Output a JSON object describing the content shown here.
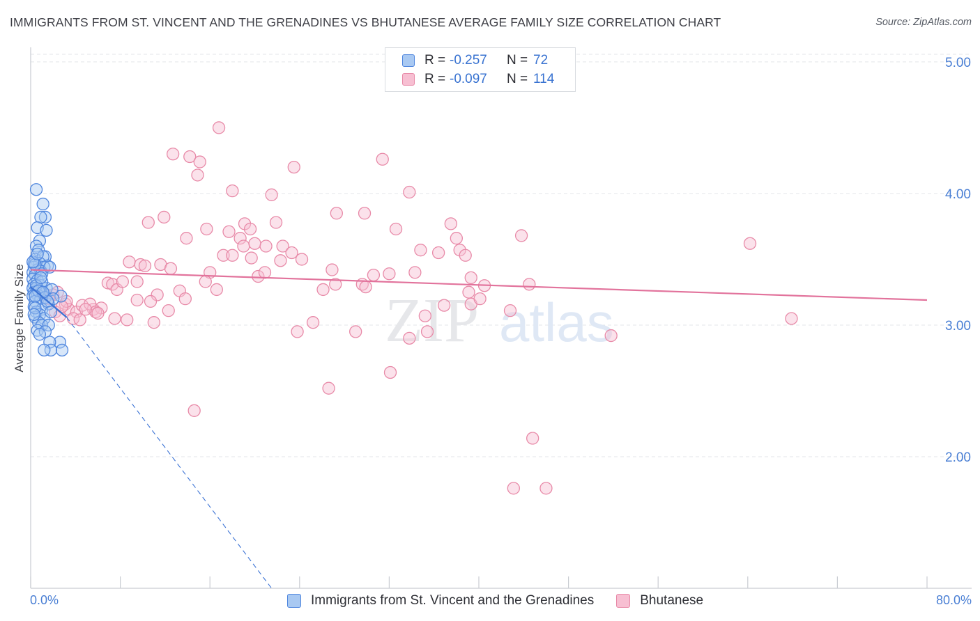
{
  "header": {
    "title": "IMMIGRANTS FROM ST. VINCENT AND THE GRENADINES VS BHUTANESE AVERAGE FAMILY SIZE CORRELATION CHART",
    "source": "Source: ZipAtlas.com"
  },
  "legend": {
    "r_label": "R =",
    "n_label": "N =",
    "series": [
      {
        "name": "Immigrants from St. Vincent and the Grenadines",
        "r": "-0.257",
        "n": "72"
      },
      {
        "name": "Bhutanese",
        "r": "-0.097",
        "n": "114"
      }
    ]
  },
  "watermark": {
    "zip": "ZIP",
    "atlas": "atlas"
  },
  "colors": {
    "blue_fill": "#a9c9f2",
    "blue_stroke": "#4f86de",
    "blue_line": "#3a72d4",
    "pink_fill": "#f7bfd2",
    "pink_stroke": "#e88aa8",
    "pink_line": "#e2739c",
    "axis_text": "#4a7fd4",
    "grid": "#e3e5e9"
  },
  "chart_data": {
    "type": "scatter",
    "title": "IMMIGRANTS FROM ST. VINCENT AND THE GRENADINES VS BHUTANESE AVERAGE FAMILY SIZE CORRELATION CHART",
    "xlabel": "",
    "ylabel": "Average Family Size",
    "xlim": [
      0,
      80
    ],
    "ylim": [
      1.0,
      5.1
    ],
    "x_tick_labels": [
      "0.0%",
      "80.0%"
    ],
    "y_ticks": [
      2.0,
      3.0,
      4.0,
      5.0
    ],
    "y_tick_labels": [
      "2.00",
      "3.00",
      "4.00",
      "5.00"
    ],
    "grid": true,
    "series": [
      {
        "name": "Immigrants from St. Vincent and the Grenadines",
        "trend": {
          "x0": 0,
          "y0": 3.29,
          "x1": 3.2,
          "y1": 3.06
        },
        "trend_extension": {
          "x0": 3.2,
          "y0": 3.06,
          "x1": 21.5,
          "y1": 1.0
        },
        "points": [
          [
            0.5,
            4.03
          ],
          [
            1.1,
            3.92
          ],
          [
            1.3,
            3.82
          ],
          [
            0.9,
            3.82
          ],
          [
            0.6,
            3.74
          ],
          [
            1.4,
            3.72
          ],
          [
            0.8,
            3.64
          ],
          [
            0.5,
            3.6
          ],
          [
            0.7,
            3.57
          ],
          [
            1.3,
            3.52
          ],
          [
            0.4,
            3.5
          ],
          [
            1.1,
            3.52
          ],
          [
            0.3,
            3.47
          ],
          [
            0.8,
            3.47
          ],
          [
            1.5,
            3.45
          ],
          [
            0.3,
            3.44
          ],
          [
            0.6,
            3.42
          ],
          [
            1.2,
            3.44
          ],
          [
            0.2,
            3.4
          ],
          [
            0.9,
            3.41
          ],
          [
            0.4,
            3.38
          ],
          [
            1.0,
            3.39
          ],
          [
            0.2,
            3.35
          ],
          [
            0.6,
            3.34
          ],
          [
            0.3,
            3.31
          ],
          [
            0.9,
            3.3
          ],
          [
            0.2,
            3.28
          ],
          [
            0.5,
            3.28
          ],
          [
            1.4,
            3.28
          ],
          [
            0.8,
            3.26
          ],
          [
            0.3,
            3.25
          ],
          [
            1.1,
            3.24
          ],
          [
            0.6,
            3.23
          ],
          [
            0.2,
            3.22
          ],
          [
            2.7,
            3.22
          ],
          [
            0.9,
            3.2
          ],
          [
            0.4,
            3.18
          ],
          [
            1.6,
            3.16
          ],
          [
            0.3,
            3.14
          ],
          [
            1.0,
            3.12
          ],
          [
            0.5,
            3.1
          ],
          [
            0.8,
            3.08
          ],
          [
            0.4,
            3.06
          ],
          [
            1.2,
            3.05
          ],
          [
            0.7,
            3.02
          ],
          [
            1.0,
            3.0
          ],
          [
            1.6,
            3.0
          ],
          [
            0.6,
            2.96
          ],
          [
            1.3,
            2.95
          ],
          [
            0.8,
            2.93
          ],
          [
            2.6,
            2.87
          ],
          [
            1.7,
            2.87
          ],
          [
            2.8,
            2.81
          ],
          [
            1.8,
            2.81
          ],
          [
            1.2,
            2.81
          ],
          [
            0.4,
            3.46
          ],
          [
            1.7,
            3.44
          ],
          [
            1.0,
            3.33
          ],
          [
            0.5,
            3.3
          ],
          [
            1.9,
            3.27
          ],
          [
            0.7,
            3.26
          ],
          [
            1.3,
            3.21
          ],
          [
            0.4,
            3.13
          ],
          [
            2.0,
            3.2
          ],
          [
            0.3,
            3.08
          ],
          [
            1.5,
            3.18
          ],
          [
            0.9,
            3.36
          ],
          [
            0.2,
            3.48
          ],
          [
            0.6,
            3.54
          ],
          [
            1.1,
            3.25
          ],
          [
            1.8,
            3.1
          ],
          [
            0.4,
            3.22
          ]
        ]
      },
      {
        "name": "Bhutanese",
        "trend": {
          "x0": 0,
          "y0": 3.42,
          "x1": 80,
          "y1": 3.19
        },
        "points": [
          [
            16.8,
            4.5
          ],
          [
            12.7,
            4.3
          ],
          [
            14.2,
            4.28
          ],
          [
            15.1,
            4.24
          ],
          [
            23.5,
            4.2
          ],
          [
            31.4,
            4.26
          ],
          [
            14.9,
            4.14
          ],
          [
            18.0,
            4.02
          ],
          [
            21.5,
            3.99
          ],
          [
            33.8,
            4.01
          ],
          [
            27.3,
            3.85
          ],
          [
            29.8,
            3.85
          ],
          [
            11.9,
            3.82
          ],
          [
            10.5,
            3.78
          ],
          [
            21.9,
            3.78
          ],
          [
            19.1,
            3.77
          ],
          [
            37.5,
            3.77
          ],
          [
            15.7,
            3.73
          ],
          [
            17.7,
            3.71
          ],
          [
            19.6,
            3.73
          ],
          [
            32.6,
            3.73
          ],
          [
            13.9,
            3.66
          ],
          [
            18.7,
            3.66
          ],
          [
            38.0,
            3.66
          ],
          [
            43.8,
            3.68
          ],
          [
            64.2,
            3.62
          ],
          [
            19.0,
            3.6
          ],
          [
            20.0,
            3.62
          ],
          [
            21.0,
            3.6
          ],
          [
            22.5,
            3.6
          ],
          [
            34.8,
            3.57
          ],
          [
            38.3,
            3.57
          ],
          [
            23.3,
            3.55
          ],
          [
            36.4,
            3.55
          ],
          [
            17.2,
            3.53
          ],
          [
            38.8,
            3.53
          ],
          [
            18.0,
            3.53
          ],
          [
            19.7,
            3.51
          ],
          [
            22.3,
            3.49
          ],
          [
            24.2,
            3.5
          ],
          [
            8.8,
            3.48
          ],
          [
            9.8,
            3.46
          ],
          [
            10.2,
            3.45
          ],
          [
            11.6,
            3.46
          ],
          [
            12.5,
            3.43
          ],
          [
            26.9,
            3.42
          ],
          [
            6.9,
            3.32
          ],
          [
            7.3,
            3.31
          ],
          [
            7.7,
            3.27
          ],
          [
            8.2,
            3.33
          ],
          [
            9.5,
            3.33
          ],
          [
            16.0,
            3.4
          ],
          [
            20.3,
            3.37
          ],
          [
            20.9,
            3.4
          ],
          [
            30.6,
            3.38
          ],
          [
            32.0,
            3.39
          ],
          [
            34.3,
            3.4
          ],
          [
            39.3,
            3.36
          ],
          [
            15.6,
            3.33
          ],
          [
            29.6,
            3.31
          ],
          [
            27.2,
            3.31
          ],
          [
            26.1,
            3.27
          ],
          [
            16.6,
            3.27
          ],
          [
            29.9,
            3.29
          ],
          [
            40.5,
            3.3
          ],
          [
            44.5,
            3.31
          ],
          [
            13.3,
            3.26
          ],
          [
            11.3,
            3.23
          ],
          [
            13.8,
            3.2
          ],
          [
            9.5,
            3.19
          ],
          [
            10.7,
            3.18
          ],
          [
            2.4,
            3.25
          ],
          [
            1.4,
            3.23
          ],
          [
            2.0,
            3.23
          ],
          [
            3.1,
            3.16
          ],
          [
            3.4,
            3.12
          ],
          [
            4.1,
            3.1
          ],
          [
            5.6,
            3.12
          ],
          [
            4.6,
            3.15
          ],
          [
            5.3,
            3.16
          ],
          [
            6.3,
            3.13
          ],
          [
            5.8,
            3.1
          ],
          [
            2.2,
            3.1
          ],
          [
            3.8,
            3.05
          ],
          [
            2.6,
            3.07
          ],
          [
            4.4,
            3.04
          ],
          [
            7.5,
            3.05
          ],
          [
            8.6,
            3.04
          ],
          [
            11.0,
            3.02
          ],
          [
            12.3,
            3.11
          ],
          [
            23.8,
            2.95
          ],
          [
            25.2,
            3.02
          ],
          [
            29.0,
            2.95
          ],
          [
            35.2,
            3.07
          ],
          [
            36.9,
            3.15
          ],
          [
            39.3,
            3.16
          ],
          [
            42.8,
            3.11
          ],
          [
            40.1,
            3.2
          ],
          [
            39.1,
            3.25
          ],
          [
            26.6,
            2.52
          ],
          [
            32.1,
            2.64
          ],
          [
            33.8,
            2.9
          ],
          [
            35.4,
            2.95
          ],
          [
            51.8,
            2.92
          ],
          [
            67.9,
            3.05
          ],
          [
            14.6,
            2.35
          ],
          [
            44.8,
            2.14
          ],
          [
            43.1,
            1.76
          ],
          [
            46.0,
            1.76
          ],
          [
            1.6,
            3.2
          ],
          [
            3.2,
            3.18
          ],
          [
            4.9,
            3.12
          ],
          [
            6.0,
            3.09
          ],
          [
            2.8,
            3.14
          ]
        ]
      }
    ]
  }
}
